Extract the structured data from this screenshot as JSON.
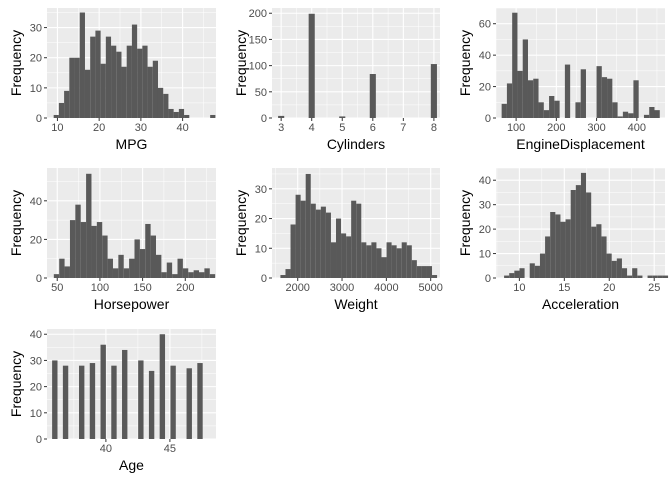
{
  "style": {
    "panel_bg": "#ebebeb",
    "grid_major": "#ffffff",
    "bar_fill": "#595959",
    "tick_text": "#4d4d4d",
    "axis_title": "#000000"
  },
  "chart_data": [
    {
      "type": "bar",
      "name": "MPG",
      "xlabel": "MPG",
      "ylabel": "Frequency",
      "xlim": [
        7.5,
        48
      ],
      "ylim": [
        0,
        36.5
      ],
      "xticks": [
        10,
        20,
        30,
        40
      ],
      "yticks": [
        0,
        10,
        20,
        30
      ],
      "bin_start": 9.1,
      "bin_width": 1.25,
      "values": [
        1,
        5,
        9,
        20,
        20,
        35,
        16,
        27,
        29,
        18,
        27,
        24,
        22,
        17,
        24,
        31,
        23,
        24,
        17,
        19,
        10,
        8,
        3,
        2,
        3,
        1,
        0,
        0,
        0,
        0,
        1
      ]
    },
    {
      "type": "bar",
      "name": "Cylinders",
      "xlabel": "Cylinders",
      "ylabel": "Frequency",
      "xlim": [
        2.7,
        8.2
      ],
      "ylim": [
        0,
        210
      ],
      "xticks": [
        3,
        4,
        5,
        6,
        7,
        8
      ],
      "yticks": [
        0,
        50,
        100,
        150,
        200
      ],
      "bin_start": 2.9,
      "bin_width": 0.2,
      "values": [
        4,
        0,
        0,
        0,
        0,
        199,
        0,
        0,
        0,
        0,
        3,
        0,
        0,
        0,
        0,
        84,
        0,
        0,
        0,
        0,
        0,
        0,
        0,
        0,
        0,
        103
      ]
    },
    {
      "type": "bar",
      "name": "EngineDisplacement",
      "xlabel": "EngineDisplacement",
      "ylabel": "Frequency",
      "xlim": [
        50,
        470
      ],
      "ylim": [
        0,
        70
      ],
      "xticks": [
        100,
        200,
        300,
        400
      ],
      "yticks": [
        0,
        20,
        40,
        60
      ],
      "bin_start": 64,
      "bin_width": 13.1,
      "values": [
        9,
        22,
        67,
        30,
        50,
        24,
        25,
        10,
        5,
        14,
        11,
        0,
        34,
        0,
        10,
        31,
        0,
        0,
        33,
        26,
        25,
        10,
        1,
        4,
        3,
        24,
        0,
        2,
        7,
        5
      ]
    },
    {
      "type": "bar",
      "name": "Horsepower",
      "xlabel": "Horsepower",
      "ylabel": "Frequency",
      "xlim": [
        38,
        236
      ],
      "ylim": [
        0,
        57
      ],
      "xticks": [
        50,
        100,
        150,
        200
      ],
      "yticks": [
        0,
        20,
        40
      ],
      "bin_start": 46,
      "bin_width": 6.3,
      "values": [
        2,
        10,
        6,
        30,
        38,
        29,
        54,
        27,
        29,
        22,
        10,
        5,
        12,
        5,
        10,
        20,
        15,
        28,
        22,
        12,
        3,
        8,
        2,
        10,
        5,
        3,
        4,
        3,
        5,
        2
      ]
    },
    {
      "type": "bar",
      "name": "Weight",
      "xlabel": "Weight",
      "ylabel": "Frequency",
      "xlim": [
        1420,
        5210
      ],
      "ylim": [
        0,
        37
      ],
      "xticks": [
        2000,
        3000,
        4000,
        5000
      ],
      "yticks": [
        0,
        10,
        20,
        30
      ],
      "bin_start": 1610,
      "bin_width": 114,
      "values": [
        1,
        3,
        18,
        28,
        26,
        35,
        25,
        23,
        24,
        22,
        12,
        20,
        15,
        14,
        26,
        25,
        12,
        11,
        12,
        10,
        7,
        12,
        11,
        10,
        12,
        11,
        6,
        4,
        4,
        4,
        1
      ]
    },
    {
      "type": "bar",
      "name": "Acceleration",
      "xlabel": "Acceleration",
      "ylabel": "Frequency",
      "xlim": [
        7.4,
        26.2
      ],
      "ylim": [
        0,
        45
      ],
      "xticks": [
        10,
        15,
        20,
        25
      ],
      "yticks": [
        0,
        10,
        20,
        30,
        40
      ],
      "bin_start": 8.3,
      "bin_width": 0.57,
      "values": [
        1,
        2,
        3,
        4,
        0,
        6,
        5,
        10,
        17,
        27,
        26,
        23,
        24,
        36,
        38,
        43,
        35,
        21,
        22,
        17,
        10,
        7,
        8,
        4,
        1,
        4,
        1,
        0,
        1,
        1,
        1,
        1
      ]
    },
    {
      "type": "bar",
      "name": "Age",
      "xlabel": "Age",
      "ylabel": "Frequency",
      "xlim": [
        35.4,
        48.6
      ],
      "ylim": [
        0,
        42
      ],
      "xticks": [
        40,
        45
      ],
      "yticks": [
        0,
        10,
        20,
        30,
        40
      ],
      "bin_start": 35.8,
      "bin_width": 0.42,
      "values": [
        30,
        0,
        28,
        0,
        0,
        28,
        0,
        29,
        0,
        36,
        0,
        28,
        0,
        34,
        0,
        0,
        30,
        0,
        26,
        0,
        40,
        0,
        28,
        0,
        0,
        27,
        0,
        29
      ]
    }
  ]
}
